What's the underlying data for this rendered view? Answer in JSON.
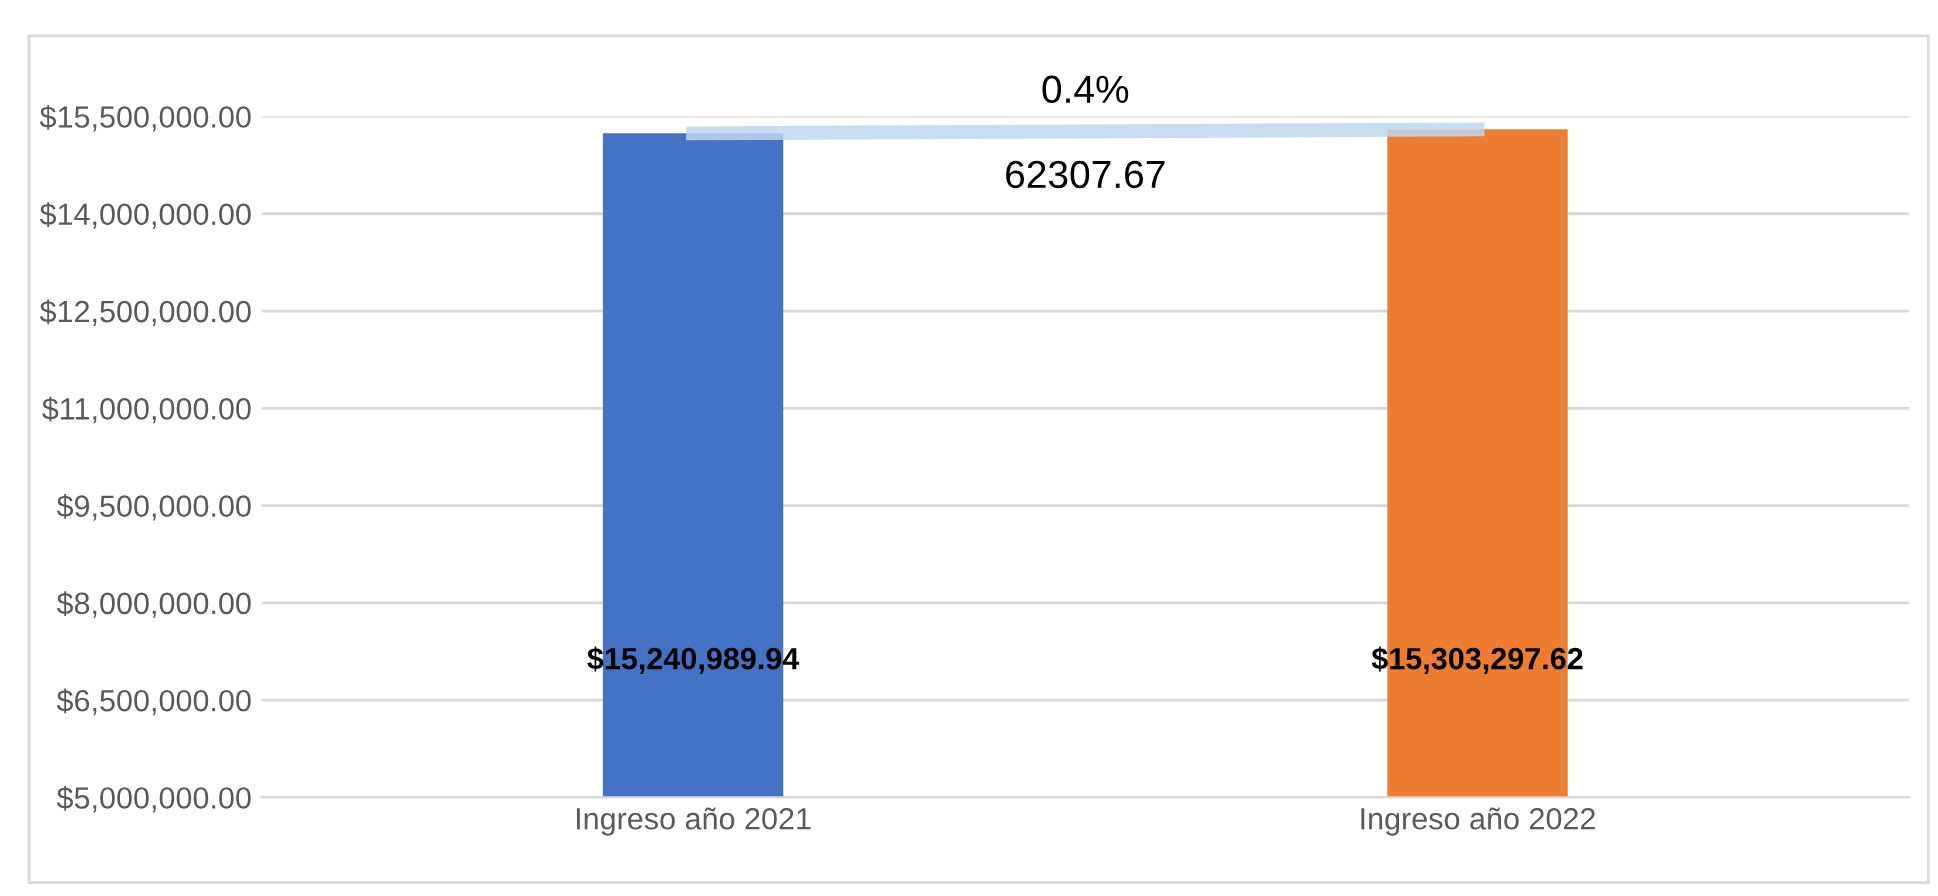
{
  "chart_data": {
    "type": "bar",
    "categories": [
      "Ingreso año 2021",
      "Ingreso año 2022"
    ],
    "series": [
      {
        "colors": [
          "#4472c4",
          "#ed7d31"
        ],
        "values": [
          15240989.94,
          15303297.62
        ],
        "value_labels": [
          "$15,240,989.94",
          "$15,303,297.62"
        ]
      },
      {
        "type": "line",
        "color": "#bdd7ee",
        "values": [
          15240000,
          15300000
        ]
      }
    ],
    "annotations": [
      "0.4%",
      "62307.67"
    ],
    "ylim": [
      5000000,
      15500000
    ],
    "yticks": [
      {
        "value": 5000000,
        "label": "$5,000,000.00"
      },
      {
        "value": 6500000,
        "label": "$6,500,000.00"
      },
      {
        "value": 8000000,
        "label": "$8,000,000.00"
      },
      {
        "value": 9500000,
        "label": "$9,500,000.00"
      },
      {
        "value": 11000000,
        "label": "$11,000,000.00"
      },
      {
        "value": 12500000,
        "label": "$12,500,000.00"
      },
      {
        "value": 14000000,
        "label": "$14,000,000.00"
      },
      {
        "value": 15500000,
        "label": "$15,500,000.00"
      }
    ],
    "grid": "y",
    "legend": false
  }
}
